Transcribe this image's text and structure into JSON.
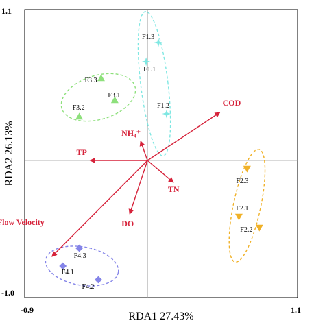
{
  "chart_data": {
    "type": "scatter",
    "xlabel": "RDA1 27.43%",
    "ylabel": "RDA2 26.13%",
    "xlim": [
      -0.9,
      1.1
    ],
    "ylim": [
      -1.0,
      1.1
    ],
    "x_ticks": [
      "-0.9",
      "1.1"
    ],
    "y_ticks": [
      "1.1",
      "-1.0"
    ],
    "colors": {
      "vector": "#d6223a",
      "F1": "#7fe7e2",
      "F2": "#f0b128",
      "F3": "#8ee07c",
      "F4": "#8585e8"
    },
    "groups": [
      {
        "key": "F1",
        "marker": "star",
        "points": [
          {
            "label": "F1.3",
            "x": 0.08,
            "y": 0.86
          },
          {
            "label": "F1.1",
            "x": -0.01,
            "y": 0.72
          },
          {
            "label": "F1.2",
            "x": 0.14,
            "y": 0.34
          }
        ]
      },
      {
        "key": "F2",
        "marker": "triangle-down",
        "points": [
          {
            "label": "F2.3",
            "x": 0.73,
            "y": -0.06
          },
          {
            "label": "F2.1",
            "x": 0.67,
            "y": -0.41
          },
          {
            "label": "F2.2",
            "x": 0.82,
            "y": -0.49
          }
        ]
      },
      {
        "key": "F3",
        "marker": "triangle-up",
        "points": [
          {
            "label": "F3.3",
            "x": -0.34,
            "y": 0.6
          },
          {
            "label": "F3.1",
            "x": -0.24,
            "y": 0.44
          },
          {
            "label": "F3.2",
            "x": -0.5,
            "y": 0.32
          }
        ]
      },
      {
        "key": "F4",
        "marker": "diamond",
        "points": [
          {
            "label": "F4.3",
            "x": -0.5,
            "y": -0.64
          },
          {
            "label": "F4.1",
            "x": -0.62,
            "y": -0.77
          },
          {
            "label": "F4.2",
            "x": -0.36,
            "y": -0.87
          }
        ]
      }
    ],
    "ellipses": [
      {
        "group": "F1",
        "cx": 0.05,
        "cy": 0.56,
        "rx": 0.1,
        "ry": 0.53,
        "rotate": -7
      },
      {
        "group": "F2",
        "cx": 0.73,
        "cy": -0.33,
        "rx": 0.1,
        "ry": 0.42,
        "rotate": 12
      },
      {
        "group": "F3",
        "cx": -0.36,
        "cy": 0.46,
        "rx": 0.28,
        "ry": 0.16,
        "rotate": -17
      },
      {
        "group": "F4",
        "cx": -0.48,
        "cy": -0.77,
        "rx": 0.27,
        "ry": 0.14,
        "rotate": 10
      }
    ],
    "vectors": [
      {
        "label": "COD",
        "x": 0.53,
        "y": 0.35
      },
      {
        "label": "NH₄⁺",
        "x": -0.05,
        "y": 0.14
      },
      {
        "label": "TP",
        "x": -0.42,
        "y": 0.0
      },
      {
        "label": "TN",
        "x": 0.19,
        "y": -0.16
      },
      {
        "label": "DO",
        "x": -0.13,
        "y": -0.39
      },
      {
        "label": "Flow Velocity",
        "x": -0.7,
        "y": -0.7
      }
    ]
  }
}
